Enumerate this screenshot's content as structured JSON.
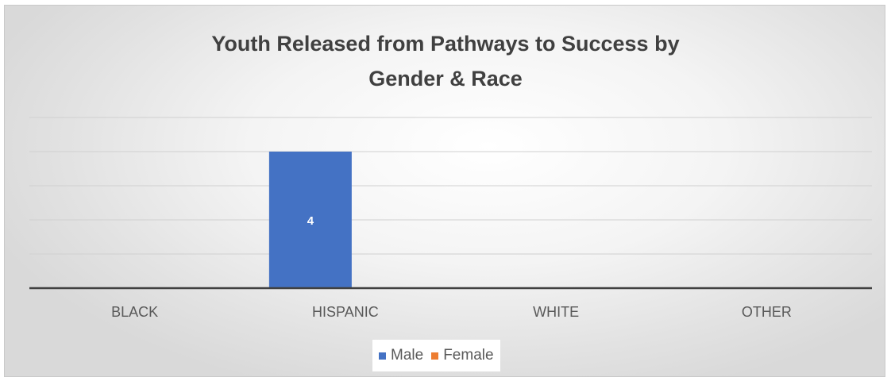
{
  "chart_data": {
    "type": "bar",
    "title_lines": [
      "Youth Released from Pathways to Success by",
      "Gender & Race"
    ],
    "categories": [
      "BLACK",
      "HISPANIC",
      "WHITE",
      "OTHER"
    ],
    "series": [
      {
        "name": "Male",
        "color": "#4472c4",
        "values": [
          0,
          4,
          0,
          0
        ]
      },
      {
        "name": "Female",
        "color": "#ed7d31",
        "values": [
          0,
          0,
          0,
          0
        ]
      }
    ],
    "data_labels": [
      "4"
    ],
    "ylim": [
      0,
      5
    ],
    "grid": true,
    "legend_position": "bottom"
  }
}
